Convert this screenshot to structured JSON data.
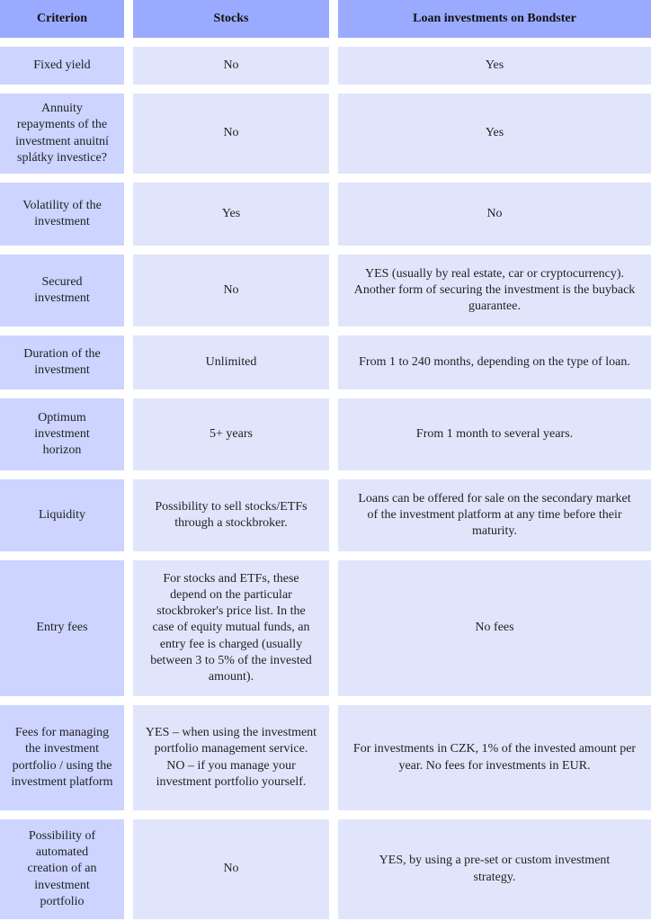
{
  "colors": {
    "header": "#9aabff",
    "criterion_column": "#ccd4ff",
    "cell": "#e1e5fc"
  },
  "header": [
    "Criterion",
    "Stocks",
    "Loan investments on Bondster"
  ],
  "rows": [
    [
      "Fixed yield",
      "No",
      "Yes"
    ],
    [
      "Annuity repayments of the investment anuitní splátky investice?",
      "No",
      "Yes"
    ],
    [
      "Volatility of the investment",
      "Yes",
      "No"
    ],
    [
      "Secured investment",
      "No",
      "YES (usually by real estate, car or cryptocurrency). Another form of securing the investment is the buyback guarantee."
    ],
    [
      "Duration of the investment",
      "Unlimited",
      "From 1 to 240 months, depending on the type of loan."
    ],
    [
      "Optimum investment horizon",
      "5+ years",
      "From 1 month to several years."
    ],
    [
      "Liquidity",
      "Possibility to sell stocks/ETFs through a stockbroker.",
      "Loans can be offered for sale on the secondary market of the investment platform at any time before their maturity."
    ],
    [
      "Entry fees",
      "For stocks and ETFs, these depend on the particular stockbroker's price list. In the case of equity mutual funds, an entry fee is charged (usually between 3 to 5% of the invested amount).",
      "No fees"
    ],
    [
      "Fees for managing the investment portfolio / using the investment platform",
      "YES – when using the investment portfolio management service. NO – if you manage your investment portfolio yourself.",
      "For investments in CZK, 1% of the invested amount per year. No fees for investments in EUR."
    ],
    [
      "Possibility of automated creation of an investment portfolio",
      "No",
      "YES, by using a pre-set or custom investment strategy."
    ]
  ]
}
